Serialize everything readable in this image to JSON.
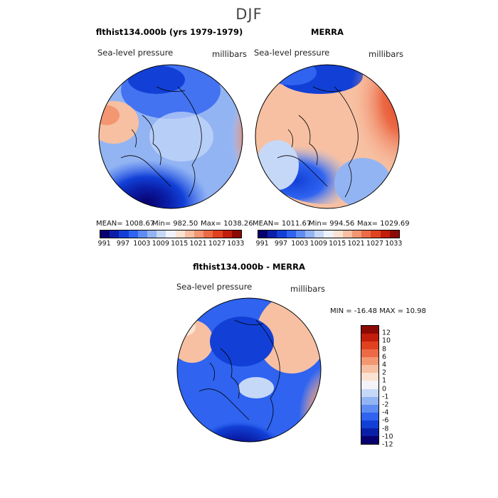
{
  "figure": {
    "season": "DJF"
  },
  "panels": [
    {
      "title": "flthist134.000b (yrs 1979-1979)",
      "variable": "Sea-level pressure",
      "units": "millibars",
      "stats": {
        "mean": "MEAN= 1008.67",
        "min": "Min= 982.50",
        "max": "Max= 1038.26"
      },
      "colorbar_ticks": [
        "991",
        "997",
        "1003",
        "1009",
        "1015",
        "1021",
        "1027",
        "1033"
      ]
    },
    {
      "title": "MERRA",
      "variable": "Sea-level pressure",
      "units": "millibars",
      "stats": {
        "mean": "MEAN= 1011.67",
        "min": "Min= 994.56",
        "max": "Max= 1029.69"
      },
      "colorbar_ticks": [
        "991",
        "997",
        "1003",
        "1009",
        "1015",
        "1021",
        "1027",
        "1033"
      ]
    }
  ],
  "diff_panel": {
    "title": "flthist134.000b - MERRA",
    "variable": "Sea-level pressure",
    "units": "millibars",
    "minmax": "MIN = -16.48 MAX =  10.98",
    "colorbar_ticks": [
      "12",
      "10",
      "8",
      "6",
      "4",
      "2",
      "1",
      "0",
      "-1",
      "-2",
      "-4",
      "-6",
      "-8",
      "-10",
      "-12"
    ]
  },
  "colors": {
    "abs_palette": [
      "#08006e",
      "#0a1fa8",
      "#1240d6",
      "#2f63f0",
      "#5f8cf2",
      "#93b4f3",
      "#c6d8f8",
      "#eef2fb",
      "#fbe2d2",
      "#f7c0a2",
      "#f29772",
      "#ec6a46",
      "#e0421f",
      "#c21e0b",
      "#8c0a04"
    ],
    "diff_palette": [
      "#08006e",
      "#0a1fa8",
      "#1240d6",
      "#2f63f0",
      "#5f8cf2",
      "#93b4f3",
      "#c6d8f8",
      "#f4f4f8",
      "#fbe2d2",
      "#f7c0a2",
      "#f29772",
      "#ec6a46",
      "#e0421f",
      "#c21e0b",
      "#8c0a04"
    ]
  }
}
